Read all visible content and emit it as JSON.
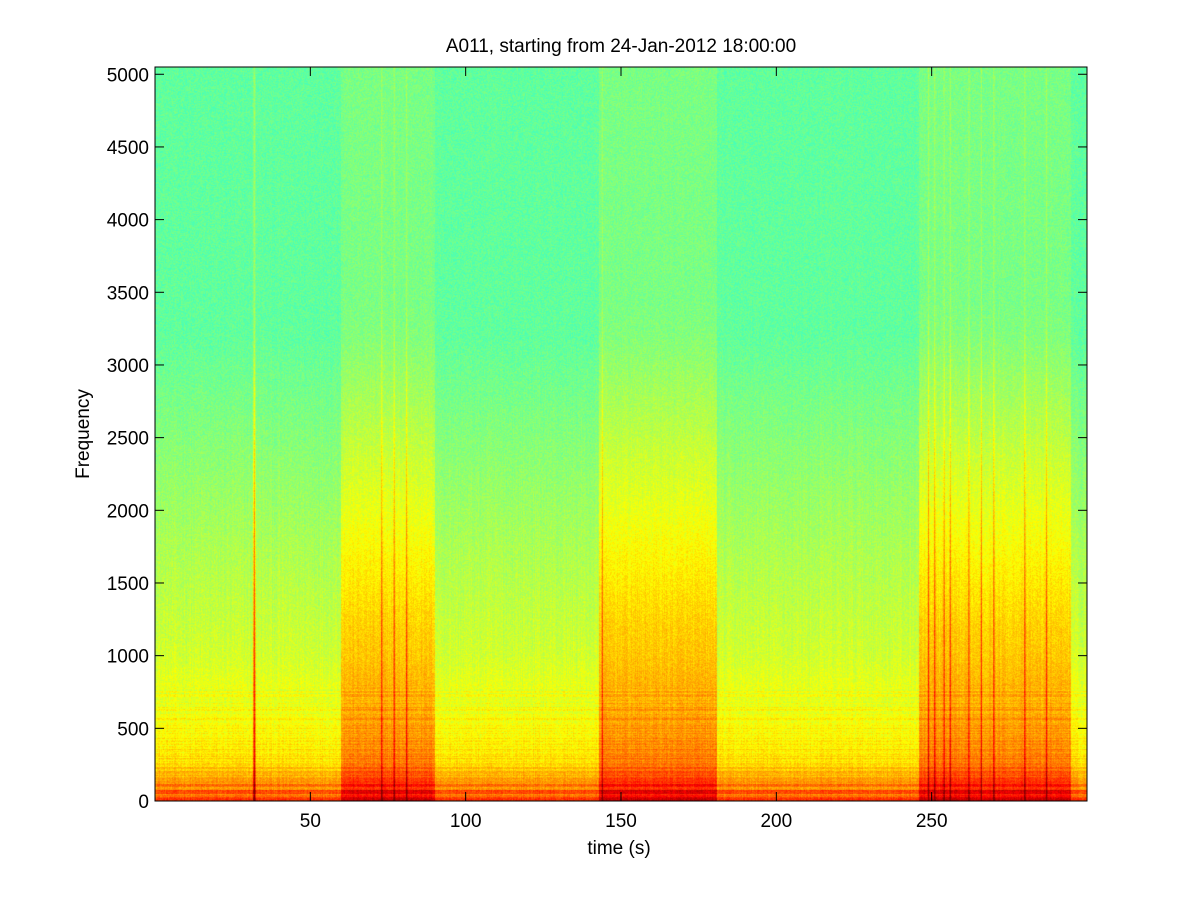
{
  "chart_data": {
    "type": "heatmap",
    "subtype": "spectrogram",
    "title": "A011, starting from 24-Jan-2012 18:00:00",
    "xlabel": "time (s)",
    "ylabel": "Frequency",
    "xlim": [
      0,
      300
    ],
    "ylim": [
      0,
      5050
    ],
    "xticks": [
      50,
      100,
      150,
      200,
      250
    ],
    "yticks": [
      0,
      500,
      1000,
      1500,
      2000,
      2500,
      3000,
      3500,
      4000,
      4500,
      5000
    ],
    "grid": false,
    "colormap": "jet",
    "colors": {
      "background_high_freq": "#3de3b2",
      "mid_level": "#e8f53a",
      "high_level": "#ffd21a",
      "peak_level": "#f0241a"
    },
    "energetic_segments_s": [
      [
        60,
        90
      ],
      [
        143,
        181
      ],
      [
        246,
        295
      ]
    ],
    "broadband_transients_s": [
      32,
      73,
      77,
      81,
      144,
      249,
      251,
      254,
      256,
      262,
      266,
      270,
      280,
      287
    ]
  }
}
